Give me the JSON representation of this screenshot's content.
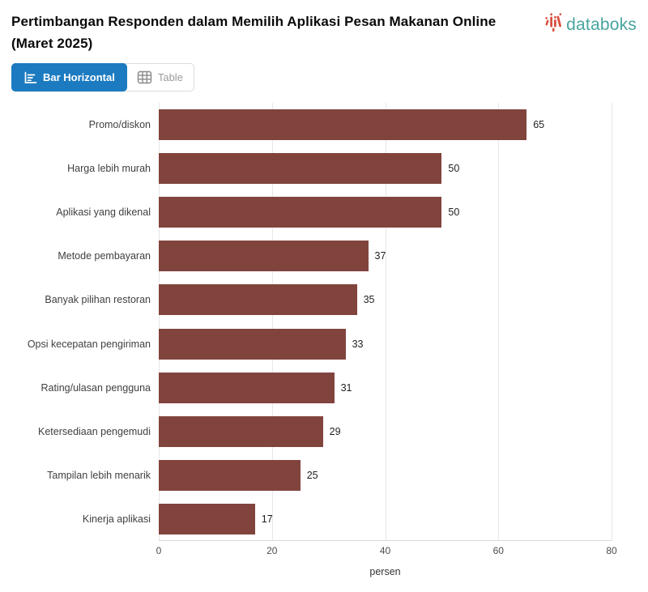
{
  "header": {
    "title": "Pertimbangan Responden dalam Memilih Aplikasi Pesan Makanan Online (Maret 2025)",
    "brand": "databoks"
  },
  "toggle": {
    "bar_label": "Bar Horizontal",
    "table_label": "Table"
  },
  "colors": {
    "bar": "#81443D",
    "active_tab_blue": "#1C7BC0",
    "brand_teal": "#47A59E",
    "brand_red": "#D9503F",
    "gridline": "#e7e7e7"
  },
  "chart_data": {
    "type": "bar",
    "orientation": "horizontal",
    "title": "Pertimbangan Responden dalam Memilih Aplikasi Pesan Makanan Online (Maret 2025)",
    "categories": [
      "Promo/diskon",
      "Harga lebih murah",
      "Aplikasi yang dikenal",
      "Metode pembayaran",
      "Banyak pilihan restoran",
      "Opsi kecepatan pengiriman",
      "Rating/ulasan pengguna",
      "Ketersediaan pengemudi",
      "Tampilan lebih menarik",
      "Kinerja aplikasi"
    ],
    "values": [
      65,
      50,
      50,
      37,
      35,
      33,
      31,
      29,
      25,
      17
    ],
    "xlabel": "persen",
    "ylabel": "",
    "xlim": [
      0,
      80
    ],
    "xticks": [
      0,
      20,
      40,
      60,
      80
    ],
    "grid": true,
    "legend": false
  }
}
